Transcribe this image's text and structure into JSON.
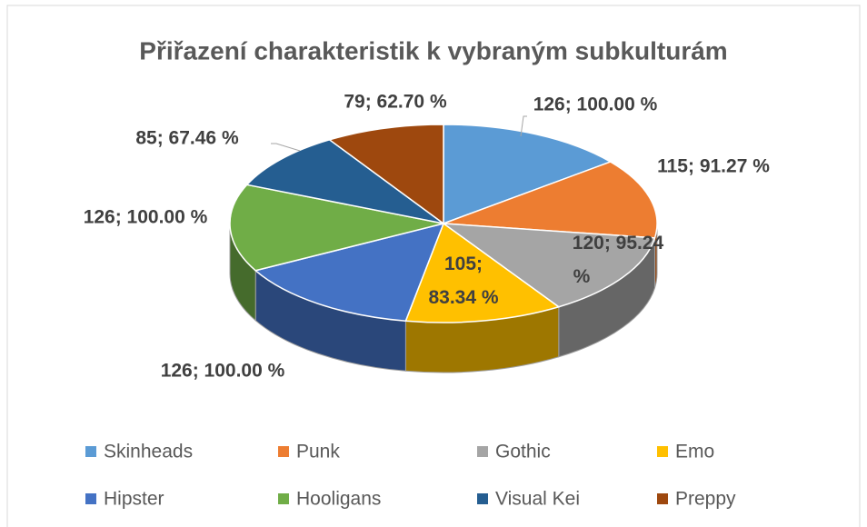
{
  "chart_data": {
    "type": "pie",
    "title": "Přiřazení charakteristik k vybraným subkulturám",
    "categories": [
      "Skinheads",
      "Punk",
      "Gothic",
      "Emo",
      "Hipster",
      "Hooligans",
      "Visual Kei",
      "Preppy"
    ],
    "values": [
      126,
      115,
      120,
      105,
      126,
      126,
      85,
      79
    ],
    "value_labels": [
      "126; 100.00 %",
      "115; 91.27 %",
      "120; 95.24 %",
      "105; 83.34 %",
      "126; 100.00 %",
      "126; 100.00 %",
      "85; 67.46 %",
      "79; 62.70 %"
    ],
    "colors": [
      "#5b9bd5",
      "#ed7d31",
      "#a5a5a5",
      "#ffc000",
      "#4472c4",
      "#70ad47",
      "#255e91",
      "#9e480e"
    ],
    "legend": "bottom"
  }
}
